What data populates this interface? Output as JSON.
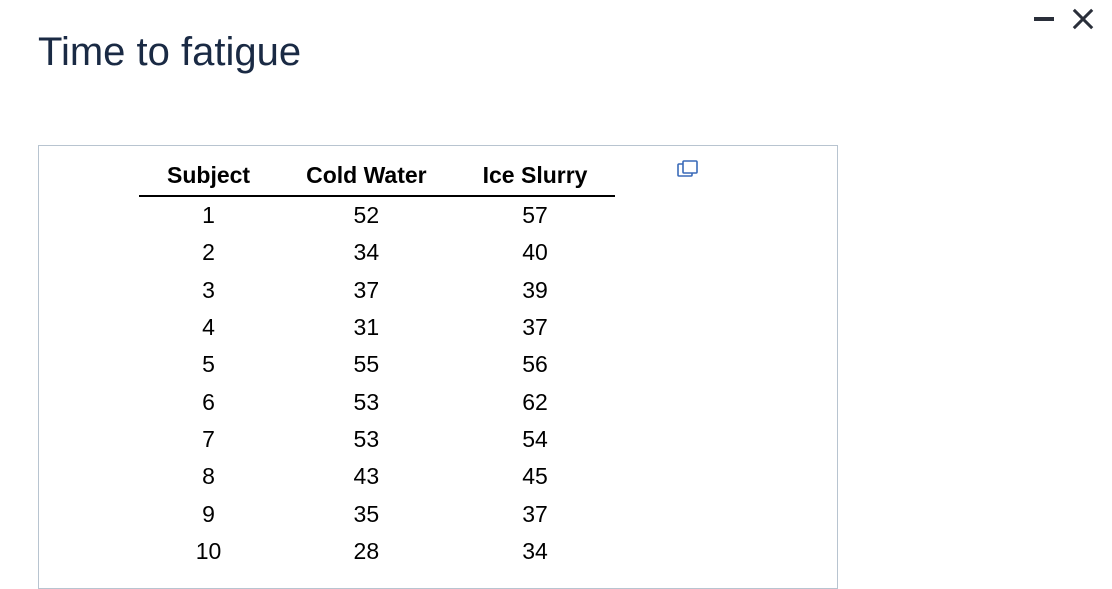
{
  "title": "Time to fatigue",
  "table": {
    "type": "table",
    "columns": [
      "Subject",
      "Cold Water",
      "Ice Slurry"
    ],
    "rows": [
      [
        "1",
        "52",
        "57"
      ],
      [
        "2",
        "34",
        "40"
      ],
      [
        "3",
        "37",
        "39"
      ],
      [
        "4",
        "31",
        "37"
      ],
      [
        "5",
        "55",
        "56"
      ],
      [
        "6",
        "53",
        "62"
      ],
      [
        "7",
        "53",
        "54"
      ],
      [
        "8",
        "43",
        "45"
      ],
      [
        "9",
        "35",
        "37"
      ],
      [
        "10",
        "28",
        "34"
      ]
    ],
    "header_fontsize": 23,
    "header_fontweight": 700,
    "cell_fontsize": 23,
    "cell_fontweight": 400,
    "text_color": "#000000",
    "header_border_color": "#000000",
    "header_border_width": 2,
    "container_border_color": "#b8c4d0",
    "background_color": "#ffffff"
  },
  "title_color": "#1a2a44",
  "title_fontsize": 40,
  "icon_color": "#2a2f3a",
  "popout_icon_color": "#3a6ab8"
}
